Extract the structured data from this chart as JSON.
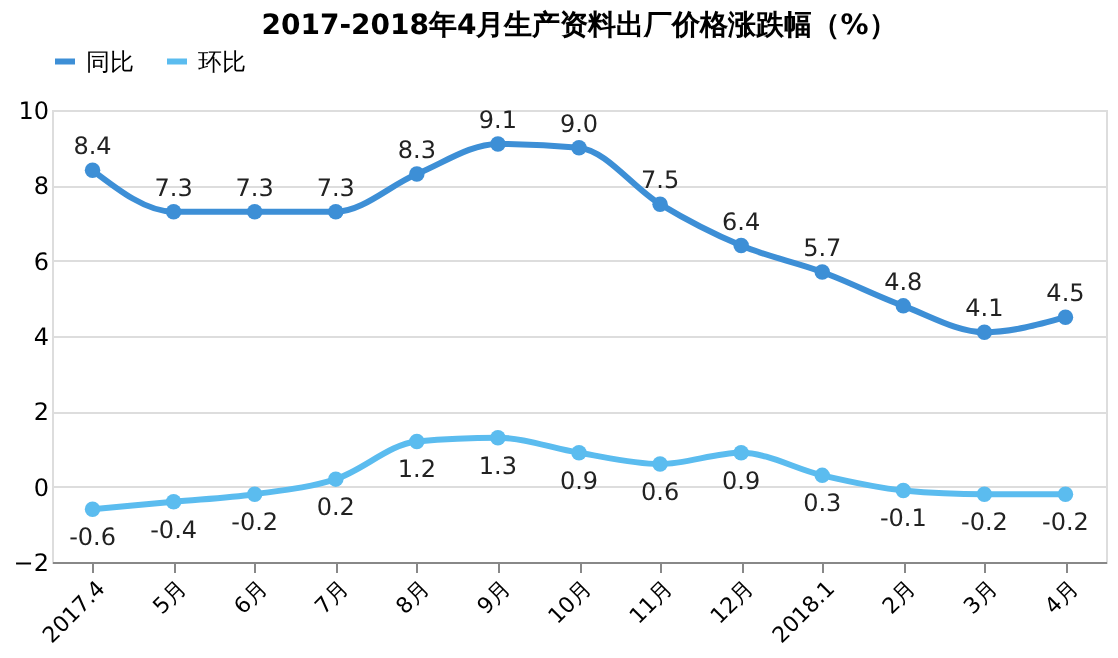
{
  "chart_data": {
    "type": "line",
    "title": "2017-2018年4月生产资料出厂价格涨跌幅（%）",
    "categories": [
      "2017.4",
      "5月",
      "6月",
      "7月",
      "8月",
      "9月",
      "10月",
      "11月",
      "12月",
      "2018.1",
      "2月",
      "3月",
      "4月"
    ],
    "series": [
      {
        "name": "同比",
        "color": "#3d8fd6",
        "values": [
          8.4,
          7.3,
          7.3,
          7.3,
          8.3,
          9.1,
          9.0,
          7.5,
          6.4,
          5.7,
          4.8,
          4.1,
          4.5
        ],
        "value_labels": [
          "8.4",
          "7.3",
          "7.3",
          "7.3",
          "8.3",
          "9.1",
          "9.0",
          "7.5",
          "6.4",
          "5.7",
          "4.8",
          "4.1",
          "4.5"
        ]
      },
      {
        "name": "环比",
        "color": "#5bbcef",
        "values": [
          -0.6,
          -0.4,
          -0.2,
          0.2,
          1.2,
          1.3,
          0.9,
          0.6,
          0.9,
          0.3,
          -0.1,
          -0.2,
          -0.2
        ],
        "value_labels": [
          "-0.6",
          "-0.4",
          "-0.2",
          "0.2",
          "1.2",
          "1.3",
          "0.9",
          "0.6",
          "0.9",
          "0.3",
          "-0.1",
          "-0.2",
          "-0.2"
        ]
      }
    ],
    "ylim": [
      -2,
      10
    ],
    "yticks": [
      -2,
      0,
      2,
      4,
      6,
      8,
      10
    ],
    "grid": "y",
    "legend": "top",
    "marker": "circle",
    "line_style": "solid"
  }
}
